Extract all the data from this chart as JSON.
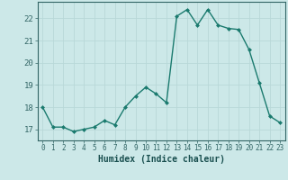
{
  "x": [
    0,
    1,
    2,
    3,
    4,
    5,
    6,
    7,
    8,
    9,
    10,
    11,
    12,
    13,
    14,
    15,
    16,
    17,
    18,
    19,
    20,
    21,
    22,
    23
  ],
  "y": [
    18.0,
    17.1,
    17.1,
    16.9,
    17.0,
    17.1,
    17.4,
    17.2,
    18.0,
    18.5,
    18.9,
    18.6,
    18.2,
    22.1,
    22.4,
    21.7,
    22.4,
    21.7,
    21.55,
    21.5,
    20.6,
    19.1,
    17.6,
    17.3
  ],
  "line_color": "#1a7a6e",
  "marker_color": "#1a7a6e",
  "bg_color": "#cce8e8",
  "grid_color_major": "#b8d8d8",
  "grid_color_minor": "#d0e8e8",
  "xlabel": "Humidex (Indice chaleur)",
  "ylim": [
    16.5,
    22.75
  ],
  "xlim": [
    -0.5,
    23.5
  ],
  "yticks": [
    17,
    18,
    19,
    20,
    21,
    22
  ],
  "xtick_labels": [
    "0",
    "1",
    "2",
    "3",
    "4",
    "5",
    "6",
    "7",
    "8",
    "9",
    "10",
    "11",
    "12",
    "13",
    "14",
    "15",
    "16",
    "17",
    "18",
    "19",
    "20",
    "21",
    "22",
    "23"
  ],
  "linewidth": 1.0,
  "markersize": 2.5
}
